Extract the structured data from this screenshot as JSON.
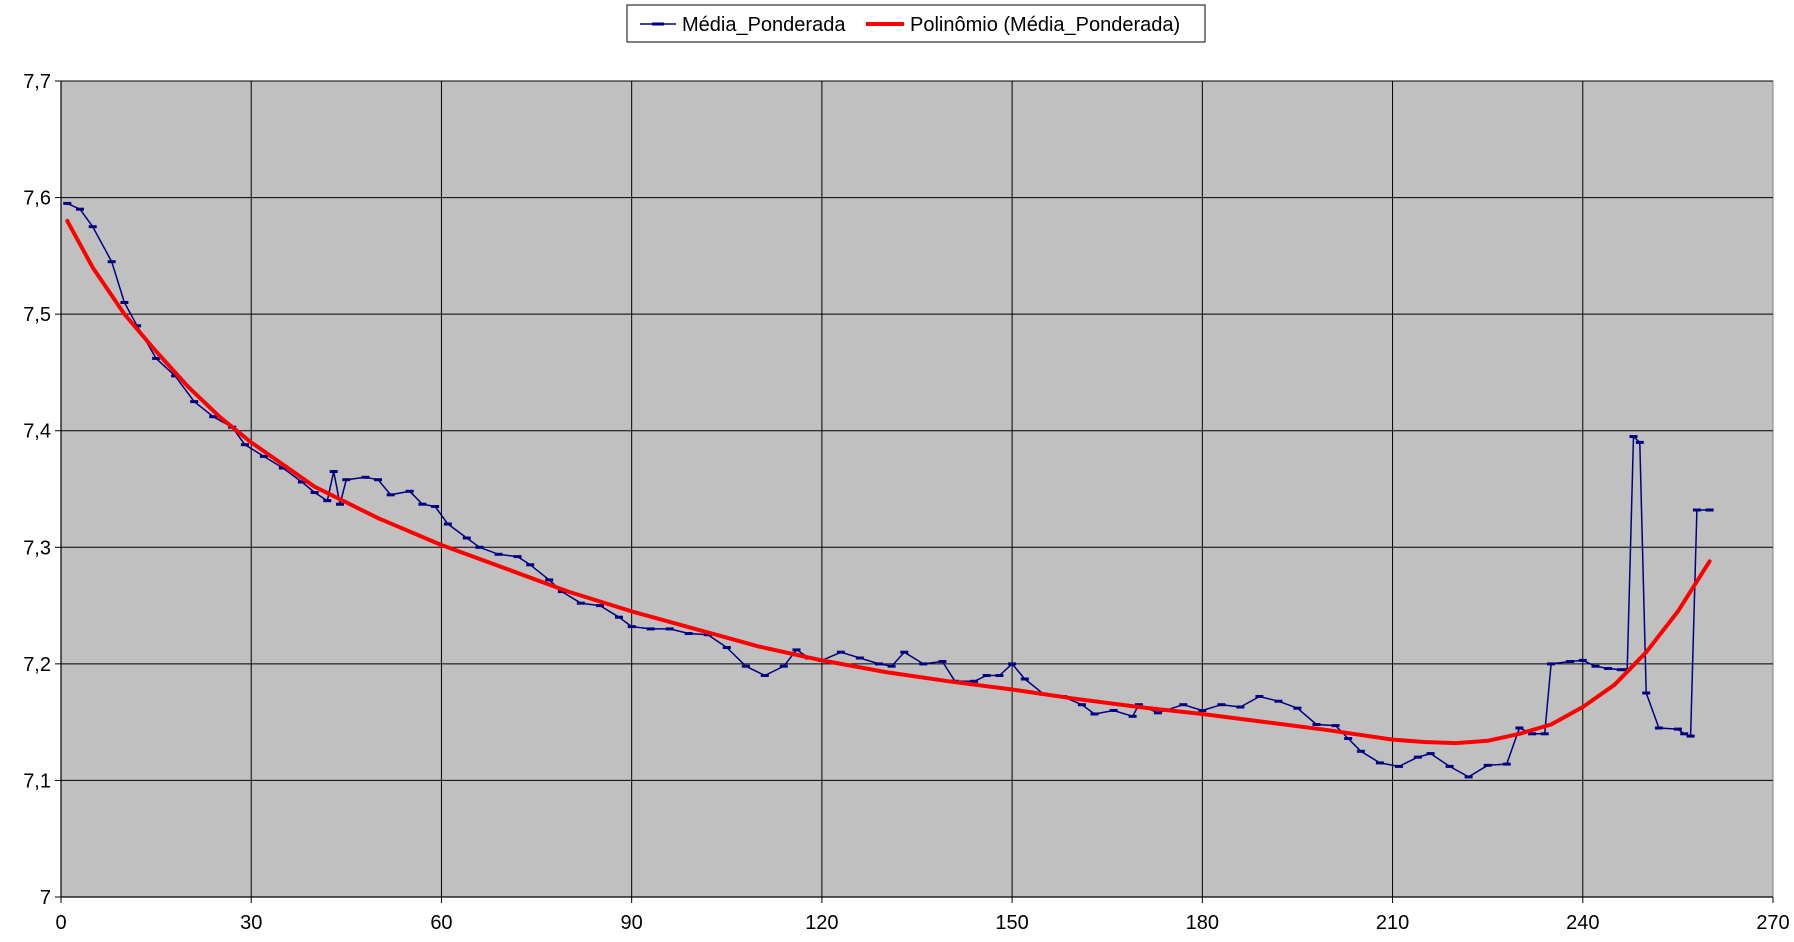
{
  "chart_data": {
    "type": "line",
    "title": "",
    "xlabel": "",
    "ylabel": "",
    "xlim": [
      0,
      270
    ],
    "ylim": [
      7.0,
      7.7
    ],
    "x_ticks": [
      0,
      30,
      60,
      90,
      120,
      150,
      180,
      210,
      240,
      270
    ],
    "x_tick_labels": [
      "0",
      "30",
      "60",
      "90",
      "120",
      "150",
      "180",
      "210",
      "240",
      "270"
    ],
    "y_ticks": [
      7.0,
      7.1,
      7.2,
      7.3,
      7.4,
      7.5,
      7.6,
      7.7
    ],
    "y_tick_labels": [
      "7",
      "7,1",
      "7,2",
      "7,3",
      "7,4",
      "7,5",
      "7,6",
      "7,7"
    ],
    "grid": true,
    "plot_background": "#c0c0c0",
    "legend": {
      "placement": "top-center",
      "entries": [
        "Média_Ponderada",
        "Polinômio (Média_Ponderada)"
      ]
    },
    "series": [
      {
        "name": "Média_Ponderada",
        "color": "#000080",
        "marker": "dash",
        "points": [
          [
            1,
            7.595
          ],
          [
            3,
            7.59
          ],
          [
            5,
            7.575
          ],
          [
            8,
            7.545
          ],
          [
            10,
            7.51
          ],
          [
            12,
            7.49
          ],
          [
            15,
            7.462
          ],
          [
            18,
            7.447
          ],
          [
            21,
            7.425
          ],
          [
            24,
            7.412
          ],
          [
            27,
            7.403
          ],
          [
            29,
            7.388
          ],
          [
            32,
            7.378
          ],
          [
            35,
            7.368
          ],
          [
            38,
            7.356
          ],
          [
            40,
            7.347
          ],
          [
            42,
            7.34
          ],
          [
            43,
            7.365
          ],
          [
            44,
            7.337
          ],
          [
            45,
            7.358
          ],
          [
            48,
            7.36
          ],
          [
            50,
            7.358
          ],
          [
            52,
            7.345
          ],
          [
            55,
            7.348
          ],
          [
            57,
            7.337
          ],
          [
            59,
            7.335
          ],
          [
            61,
            7.32
          ],
          [
            64,
            7.308
          ],
          [
            66,
            7.3
          ],
          [
            69,
            7.294
          ],
          [
            72,
            7.292
          ],
          [
            74,
            7.285
          ],
          [
            77,
            7.272
          ],
          [
            79,
            7.262
          ],
          [
            82,
            7.252
          ],
          [
            85,
            7.25
          ],
          [
            88,
            7.24
          ],
          [
            90,
            7.232
          ],
          [
            93,
            7.23
          ],
          [
            96,
            7.23
          ],
          [
            99,
            7.226
          ],
          [
            102,
            7.225
          ],
          [
            105,
            7.214
          ],
          [
            108,
            7.198
          ],
          [
            111,
            7.19
          ],
          [
            114,
            7.198
          ],
          [
            116,
            7.212
          ],
          [
            118,
            7.205
          ],
          [
            120,
            7.203
          ],
          [
            123,
            7.21
          ],
          [
            126,
            7.205
          ],
          [
            129,
            7.2
          ],
          [
            131,
            7.198
          ],
          [
            133,
            7.21
          ],
          [
            136,
            7.2
          ],
          [
            139,
            7.202
          ],
          [
            141,
            7.185
          ],
          [
            144,
            7.185
          ],
          [
            146,
            7.19
          ],
          [
            148,
            7.19
          ],
          [
            150,
            7.2
          ],
          [
            152,
            7.187
          ],
          [
            155,
            7.174
          ],
          [
            158,
            7.172
          ],
          [
            161,
            7.165
          ],
          [
            163,
            7.157
          ],
          [
            166,
            7.16
          ],
          [
            169,
            7.155
          ],
          [
            170,
            7.165
          ],
          [
            173,
            7.158
          ],
          [
            177,
            7.165
          ],
          [
            180,
            7.16
          ],
          [
            183,
            7.165
          ],
          [
            186,
            7.163
          ],
          [
            189,
            7.172
          ],
          [
            192,
            7.168
          ],
          [
            195,
            7.162
          ],
          [
            198,
            7.148
          ],
          [
            201,
            7.147
          ],
          [
            203,
            7.136
          ],
          [
            205,
            7.125
          ],
          [
            208,
            7.115
          ],
          [
            211,
            7.112
          ],
          [
            214,
            7.12
          ],
          [
            216,
            7.123
          ],
          [
            219,
            7.112
          ],
          [
            222,
            7.103
          ],
          [
            225,
            7.113
          ],
          [
            228,
            7.114
          ],
          [
            230,
            7.145
          ],
          [
            232,
            7.14
          ],
          [
            234,
            7.14
          ],
          [
            235,
            7.2
          ],
          [
            238,
            7.202
          ],
          [
            240,
            7.203
          ],
          [
            242,
            7.198
          ],
          [
            244,
            7.196
          ],
          [
            246,
            7.195
          ],
          [
            247,
            7.195
          ],
          [
            248,
            7.395
          ],
          [
            249,
            7.39
          ],
          [
            250,
            7.175
          ],
          [
            252,
            7.145
          ],
          [
            255,
            7.144
          ],
          [
            256,
            7.14
          ],
          [
            257,
            7.138
          ],
          [
            258,
            7.332
          ],
          [
            260,
            7.332
          ]
        ]
      },
      {
        "name": "Polinômio (Média_Ponderada)",
        "color": "#ff0000",
        "points": [
          [
            1,
            7.58
          ],
          [
            5,
            7.54
          ],
          [
            10,
            7.5
          ],
          [
            15,
            7.468
          ],
          [
            20,
            7.438
          ],
          [
            25,
            7.412
          ],
          [
            30,
            7.39
          ],
          [
            40,
            7.352
          ],
          [
            50,
            7.325
          ],
          [
            60,
            7.302
          ],
          [
            70,
            7.282
          ],
          [
            80,
            7.262
          ],
          [
            90,
            7.245
          ],
          [
            100,
            7.23
          ],
          [
            110,
            7.215
          ],
          [
            120,
            7.203
          ],
          [
            130,
            7.193
          ],
          [
            140,
            7.185
          ],
          [
            150,
            7.178
          ],
          [
            160,
            7.17
          ],
          [
            170,
            7.163
          ],
          [
            180,
            7.157
          ],
          [
            190,
            7.15
          ],
          [
            200,
            7.143
          ],
          [
            210,
            7.135
          ],
          [
            215,
            7.133
          ],
          [
            220,
            7.132
          ],
          [
            225,
            7.134
          ],
          [
            230,
            7.14
          ],
          [
            235,
            7.148
          ],
          [
            240,
            7.163
          ],
          [
            245,
            7.182
          ],
          [
            250,
            7.21
          ],
          [
            255,
            7.245
          ],
          [
            260,
            7.288
          ]
        ]
      }
    ]
  }
}
